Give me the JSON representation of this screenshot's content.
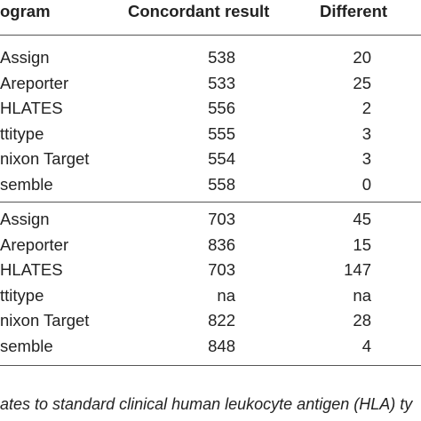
{
  "table": {
    "headers": {
      "program": "ogram",
      "concordant": "Concordant result",
      "different": "Different"
    },
    "sections": [
      {
        "rows": [
          {
            "program": "Assign",
            "concordant": "538",
            "different": "20"
          },
          {
            "program": "Areporter",
            "concordant": "533",
            "different": "25"
          },
          {
            "program": "HLATES",
            "concordant": "556",
            "different": "2"
          },
          {
            "program": "ttitype",
            "concordant": "555",
            "different": "3"
          },
          {
            "program": "nixon Target",
            "concordant": "554",
            "different": "3"
          },
          {
            "program": "semble",
            "concordant": "558",
            "different": "0"
          }
        ]
      },
      {
        "rows": [
          {
            "program": "Assign",
            "concordant": "703",
            "different": "45"
          },
          {
            "program": "Areporter",
            "concordant": "836",
            "different": "15"
          },
          {
            "program": "HLATES",
            "concordant": "703",
            "different": "147"
          },
          {
            "program": "ttitype",
            "concordant": "na",
            "different": "na"
          },
          {
            "program": "nixon Target",
            "concordant": "822",
            "different": "28"
          },
          {
            "program": "semble",
            "concordant": "848",
            "different": "4"
          }
        ]
      }
    ]
  },
  "footnote": "ates to standard clinical human leukocyte antigen (HLA) ty"
}
